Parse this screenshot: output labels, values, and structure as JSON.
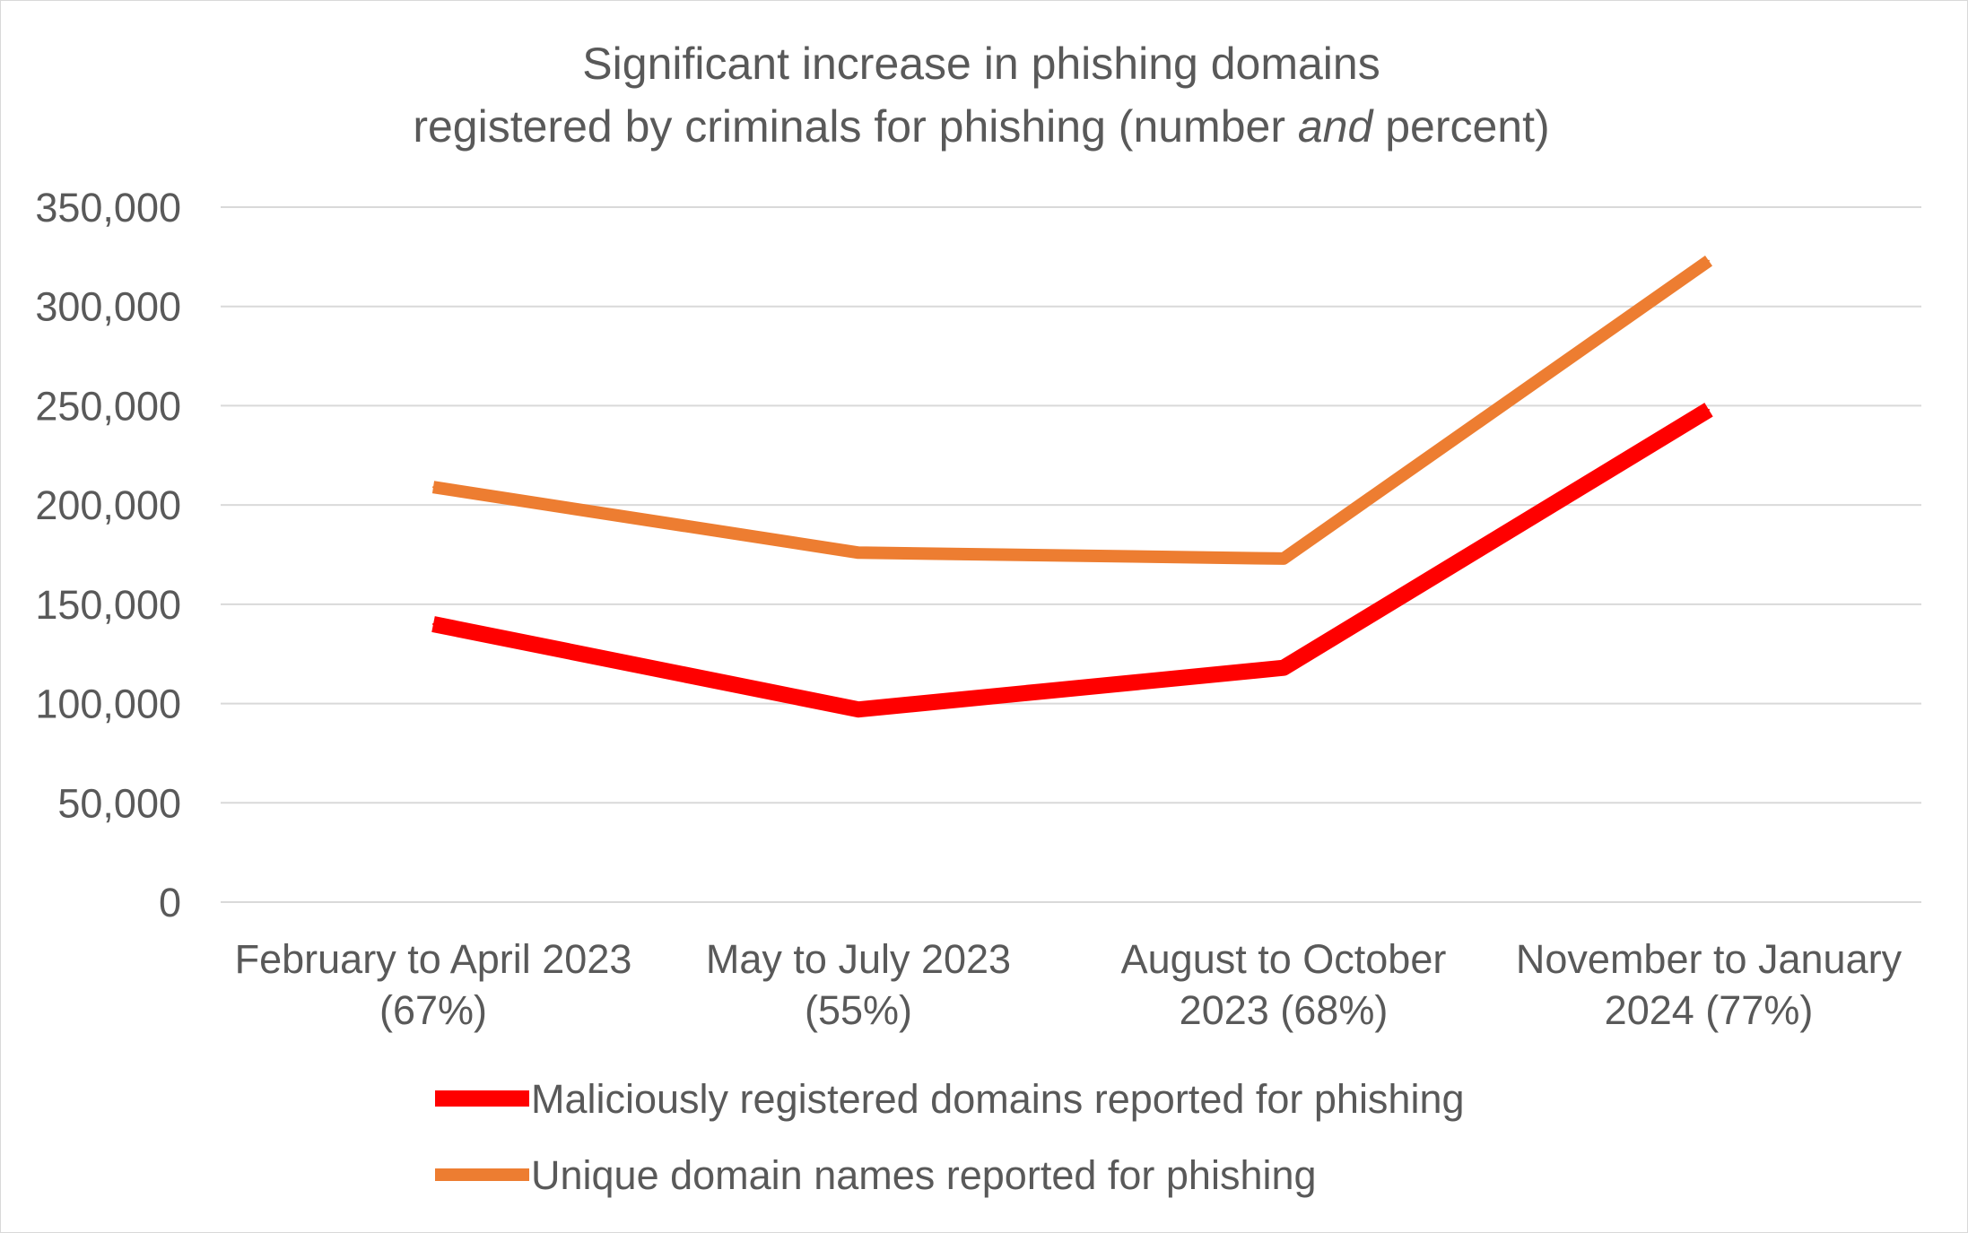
{
  "chart_data": {
    "type": "line",
    "title_line1": "Significant increase in phishing domains",
    "title_line2_before": "registered by criminals for phishing (number ",
    "title_line2_italic": "and",
    "title_line2_after": " percent)",
    "xlabel": "",
    "ylabel": "",
    "categories": [
      [
        "February to April 2023",
        "(67%)"
      ],
      [
        "May to July 2023",
        "(55%)"
      ],
      [
        "August to October",
        "2023 (68%)"
      ],
      [
        "November to January",
        "2024 (77%)"
      ]
    ],
    "ylim": [
      0,
      350000
    ],
    "ytick_values": [
      0,
      50000,
      100000,
      150000,
      200000,
      250000,
      300000,
      350000
    ],
    "ytick_labels": [
      "0",
      "50,000",
      "100,000",
      "150,000",
      "200,000",
      "250,000",
      "300,000",
      "350,000"
    ],
    "grid": true,
    "legend_position": "bottom",
    "series": [
      {
        "name": "Maliciously registered domains reported for phishing",
        "color": "#ff0000",
        "values": [
          140000,
          97000,
          118000,
          248000
        ]
      },
      {
        "name": "Unique domain names reported for phishing",
        "color": "#ed7d31",
        "values": [
          209000,
          176000,
          173000,
          323000
        ]
      }
    ]
  }
}
